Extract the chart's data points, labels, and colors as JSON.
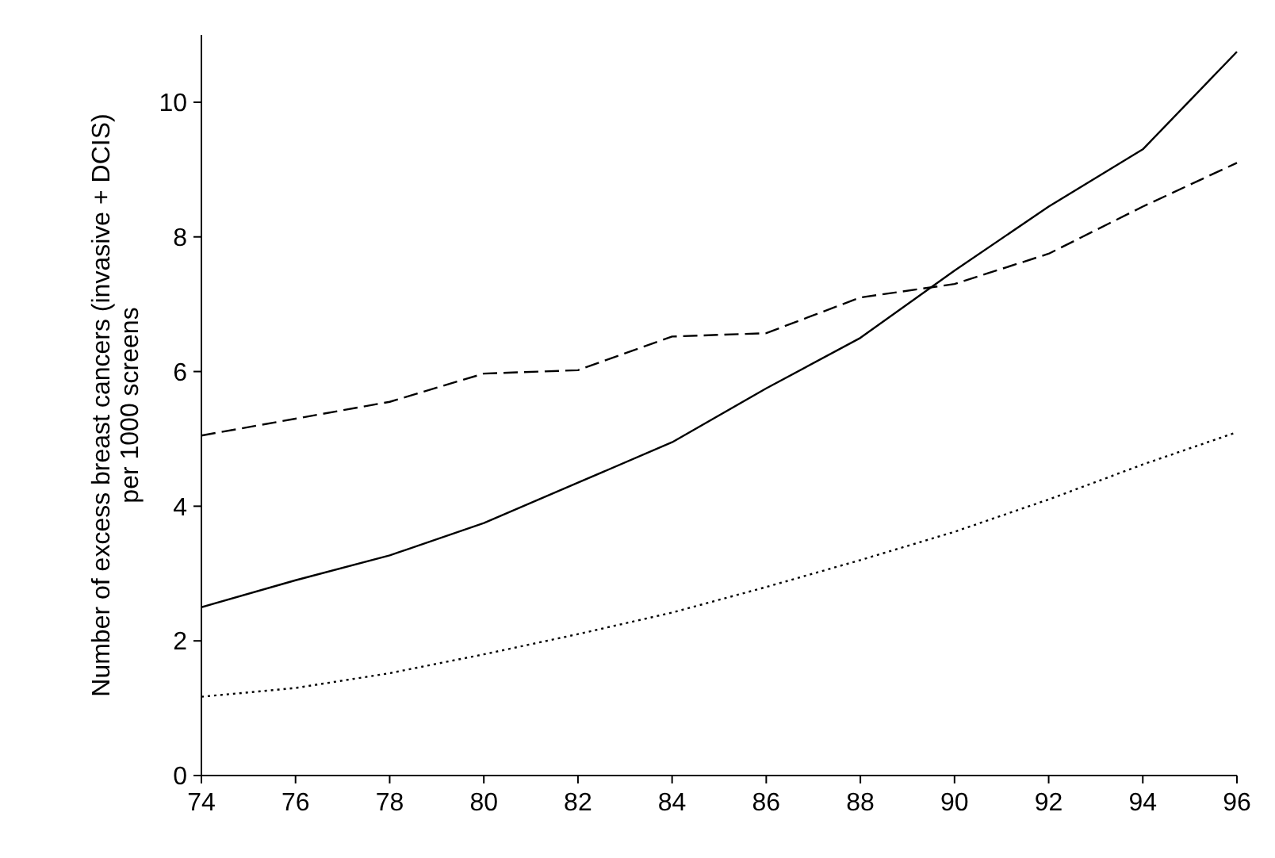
{
  "chart_data": {
    "type": "line",
    "ylabel": "Number of excess breast cancers (invasive + DCIS)\nper 1000 screens",
    "x": [
      74,
      76,
      78,
      80,
      82,
      84,
      86,
      88,
      90,
      92,
      94,
      96
    ],
    "xlim": [
      74,
      96
    ],
    "xticks": [
      74,
      76,
      78,
      80,
      82,
      84,
      86,
      88,
      90,
      92,
      94,
      96
    ],
    "ylim": [
      0,
      11
    ],
    "yticks": [
      0,
      2,
      4,
      6,
      8,
      10
    ],
    "grid": false,
    "marker": "none",
    "series": [
      {
        "color": "#000000",
        "line_style": "solid",
        "values": [
          2.5,
          2.9,
          3.27,
          3.75,
          4.35,
          4.95,
          5.75,
          6.5,
          7.5,
          8.45,
          9.3,
          10.75
        ]
      },
      {
        "color": "#000000",
        "line_style": "dashed",
        "values": [
          5.05,
          5.3,
          5.55,
          5.97,
          6.02,
          6.52,
          6.57,
          7.1,
          7.3,
          7.75,
          8.45,
          9.1
        ]
      },
      {
        "color": "#000000",
        "line_style": "dotted",
        "values": [
          1.17,
          1.3,
          1.52,
          1.8,
          2.1,
          2.42,
          2.8,
          3.2,
          3.62,
          4.1,
          4.62,
          5.1
        ]
      }
    ]
  }
}
